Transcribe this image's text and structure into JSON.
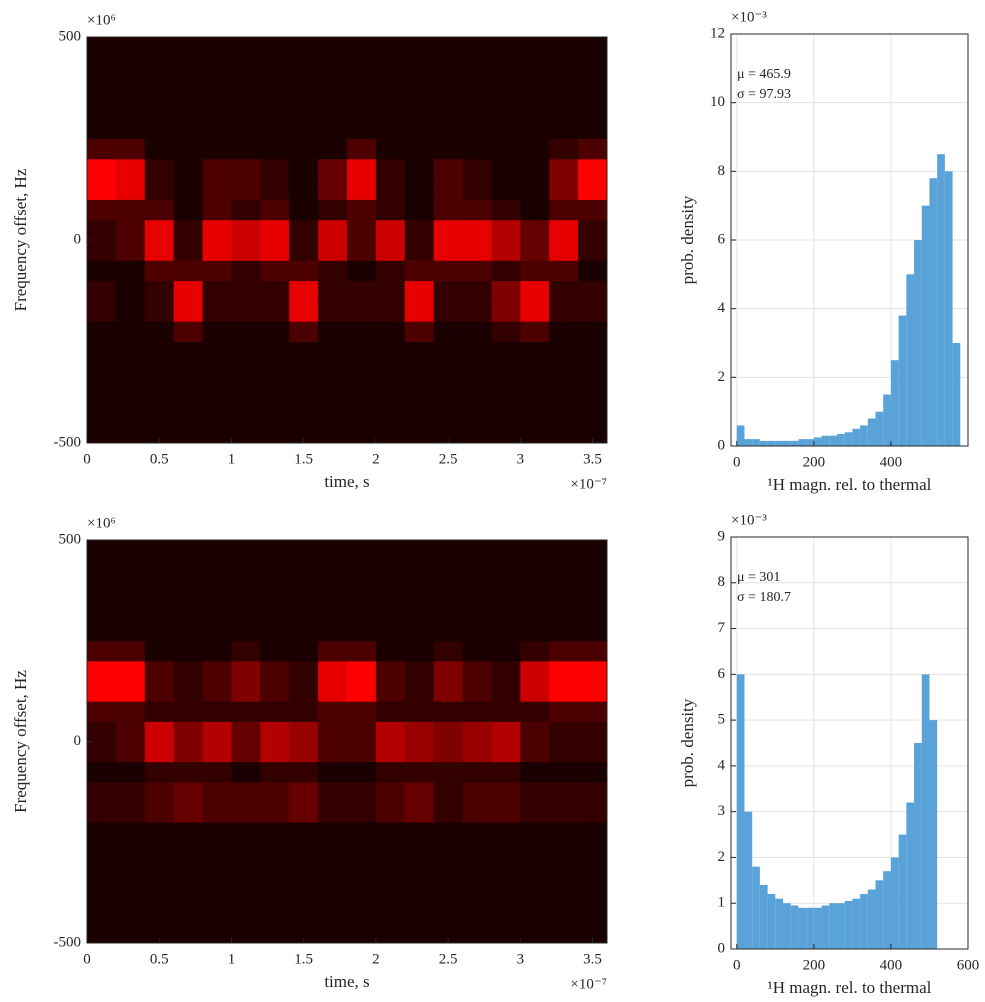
{
  "chart_data": [
    {
      "type": "heatmap",
      "xlabel": "time, s",
      "ylabel": "Frequency offset, Hz",
      "x_multiplier": "×10⁻⁷",
      "y_multiplier": "×10⁶",
      "colormap": [
        "#000000",
        "#ff0000"
      ],
      "xlim": [
        0,
        3.6
      ],
      "ylim": [
        -500,
        500
      ],
      "xticks": [
        0,
        0.5,
        1,
        1.5,
        2,
        2.5,
        3,
        3.5
      ],
      "yticks": [
        -500,
        0,
        500
      ],
      "xbins": [
        0,
        0.2,
        0.4,
        0.6,
        0.8,
        1,
        1.2,
        1.4,
        1.6,
        1.8,
        2,
        2.2,
        2.4,
        2.6,
        2.8,
        3,
        3.2,
        3.4,
        3.6
      ],
      "ybins": [
        -500,
        -450,
        -400,
        -350,
        -300,
        -250,
        -200,
        -150,
        -100,
        -50,
        0,
        50,
        100,
        150,
        200,
        250,
        300,
        350,
        400,
        450,
        500
      ],
      "z": [
        [
          1,
          1,
          1,
          1,
          1,
          1,
          1,
          1,
          1,
          1,
          1,
          1,
          1,
          1,
          1,
          1,
          1,
          1
        ],
        [
          1,
          1,
          1,
          1,
          1,
          1,
          1,
          1,
          1,
          1,
          1,
          1,
          1,
          1,
          1,
          1,
          1,
          1
        ],
        [
          1,
          1,
          1,
          1,
          1,
          1,
          1,
          1,
          1,
          1,
          1,
          1,
          1,
          1,
          1,
          1,
          1,
          1
        ],
        [
          1,
          1,
          1,
          1,
          1,
          1,
          1,
          1,
          1,
          1,
          1,
          1,
          1,
          1,
          1,
          1,
          1,
          1
        ],
        [
          1,
          1,
          1,
          1,
          1,
          1,
          1,
          1,
          1,
          1,
          1,
          1,
          1,
          1,
          1,
          1,
          1,
          1
        ],
        [
          1,
          1,
          1,
          3,
          1,
          1,
          1,
          3,
          1,
          1,
          1,
          3,
          1,
          1,
          2,
          3,
          1,
          1
        ],
        [
          2,
          1,
          2,
          9,
          2,
          2,
          2,
          9,
          2,
          2,
          2,
          9,
          2,
          2,
          5,
          9,
          2,
          2
        ],
        [
          2,
          1,
          2,
          9,
          2,
          2,
          2,
          9,
          2,
          2,
          2,
          9,
          2,
          2,
          5,
          9,
          2,
          2
        ],
        [
          1,
          1,
          3,
          3,
          3,
          2,
          3,
          3,
          2,
          1,
          2,
          3,
          3,
          3,
          2,
          3,
          3,
          1
        ],
        [
          2,
          3,
          9,
          2,
          9,
          8,
          9,
          2,
          8,
          3,
          8,
          2,
          9,
          9,
          7,
          4,
          9,
          2
        ],
        [
          2,
          3,
          9,
          2,
          9,
          8,
          9,
          2,
          8,
          3,
          8,
          2,
          9,
          9,
          7,
          4,
          9,
          2
        ],
        [
          3,
          3,
          3,
          1,
          3,
          2,
          3,
          1,
          2,
          3,
          2,
          1,
          3,
          3,
          2,
          1,
          3,
          3
        ],
        [
          10,
          9,
          2,
          1,
          3,
          3,
          2,
          1,
          4,
          9,
          2,
          1,
          3,
          2,
          1,
          1,
          5,
          10
        ],
        [
          10,
          9,
          2,
          1,
          3,
          3,
          2,
          1,
          4,
          9,
          2,
          1,
          3,
          2,
          1,
          1,
          5,
          10
        ],
        [
          3,
          3,
          1,
          1,
          1,
          1,
          1,
          1,
          1,
          3,
          1,
          1,
          1,
          1,
          1,
          1,
          2,
          3
        ],
        [
          1,
          1,
          1,
          1,
          1,
          1,
          1,
          1,
          1,
          1,
          1,
          1,
          1,
          1,
          1,
          1,
          1,
          1
        ],
        [
          1,
          1,
          1,
          1,
          1,
          1,
          1,
          1,
          1,
          1,
          1,
          1,
          1,
          1,
          1,
          1,
          1,
          1
        ],
        [
          1,
          1,
          1,
          1,
          1,
          1,
          1,
          1,
          1,
          1,
          1,
          1,
          1,
          1,
          1,
          1,
          1,
          1
        ],
        [
          1,
          1,
          1,
          1,
          1,
          1,
          1,
          1,
          1,
          1,
          1,
          1,
          1,
          1,
          1,
          1,
          1,
          1
        ],
        [
          1,
          1,
          1,
          1,
          1,
          1,
          1,
          1,
          1,
          1,
          1,
          1,
          1,
          1,
          1,
          1,
          1,
          1
        ]
      ]
    },
    {
      "type": "histogram",
      "xlabel": "¹H magn. rel. to thermal",
      "ylabel": "prob. density",
      "y_multiplier": "×10⁻³",
      "annotations": [
        "μ = 465.9",
        "σ = 97.93"
      ],
      "color": "#5aa3d8",
      "grid": true,
      "xlim": [
        -15,
        600
      ],
      "ylim": [
        0,
        12
      ],
      "xticks": [
        0,
        200,
        400
      ],
      "yticks": [
        0,
        2,
        4,
        6,
        8,
        10,
        12
      ],
      "bins": [
        0,
        20,
        40,
        60,
        80,
        100,
        120,
        140,
        160,
        180,
        200,
        220,
        240,
        260,
        280,
        300,
        320,
        340,
        360,
        380,
        400,
        420,
        440,
        460,
        480,
        500,
        520,
        540,
        560,
        580
      ],
      "values": [
        0.6,
        0.2,
        0.2,
        0.15,
        0.15,
        0.15,
        0.15,
        0.15,
        0.2,
        0.2,
        0.25,
        0.3,
        0.3,
        0.35,
        0.4,
        0.5,
        0.6,
        0.8,
        1.0,
        1.5,
        2.5,
        3.8,
        5.0,
        6.0,
        7.0,
        7.8,
        8.5,
        8.0,
        3.0
      ]
    },
    {
      "type": "heatmap",
      "xlabel": "time, s",
      "ylabel": "Frequency offset, Hz",
      "x_multiplier": "×10⁻⁷",
      "y_multiplier": "×10⁶",
      "colormap": [
        "#000000",
        "#ff0000"
      ],
      "xlim": [
        0,
        3.6
      ],
      "ylim": [
        -500,
        500
      ],
      "xticks": [
        0,
        0.5,
        1,
        1.5,
        2,
        2.5,
        3,
        3.5
      ],
      "yticks": [
        -500,
        0,
        500
      ],
      "xbins": [
        0,
        0.2,
        0.4,
        0.6,
        0.8,
        1,
        1.2,
        1.4,
        1.6,
        1.8,
        2,
        2.2,
        2.4,
        2.6,
        2.8,
        3,
        3.2,
        3.4,
        3.6
      ],
      "ybins": [
        -500,
        -450,
        -400,
        -350,
        -300,
        -250,
        -200,
        -150,
        -100,
        -50,
        0,
        50,
        100,
        150,
        200,
        250,
        300,
        350,
        400,
        450,
        500
      ],
      "z": [
        [
          1,
          1,
          1,
          1,
          1,
          1,
          1,
          1,
          1,
          1,
          1,
          1,
          1,
          1,
          1,
          1,
          1,
          1
        ],
        [
          1,
          1,
          1,
          1,
          1,
          1,
          1,
          1,
          1,
          1,
          1,
          1,
          1,
          1,
          1,
          1,
          1,
          1
        ],
        [
          1,
          1,
          1,
          1,
          1,
          1,
          1,
          1,
          1,
          1,
          1,
          1,
          1,
          1,
          1,
          1,
          1,
          1
        ],
        [
          1,
          1,
          1,
          1,
          1,
          1,
          1,
          1,
          1,
          1,
          1,
          1,
          1,
          1,
          1,
          1,
          1,
          1
        ],
        [
          1,
          1,
          1,
          1,
          1,
          1,
          1,
          1,
          1,
          1,
          1,
          1,
          1,
          1,
          1,
          1,
          1,
          1
        ],
        [
          1,
          1,
          1,
          1,
          1,
          1,
          1,
          1,
          1,
          1,
          1,
          1,
          1,
          1,
          1,
          1,
          1,
          1
        ],
        [
          2,
          2,
          3,
          4,
          3,
          3,
          3,
          4,
          2,
          2,
          3,
          4,
          2,
          3,
          3,
          2,
          2,
          2
        ],
        [
          2,
          2,
          3,
          4,
          3,
          3,
          3,
          4,
          2,
          2,
          3,
          4,
          2,
          3,
          3,
          2,
          2,
          2
        ],
        [
          1,
          1,
          2,
          2,
          2,
          1,
          2,
          2,
          1,
          1,
          2,
          2,
          2,
          2,
          2,
          1,
          1,
          1
        ],
        [
          2,
          3,
          8,
          5,
          7,
          4,
          7,
          6,
          3,
          3,
          7,
          6,
          5,
          6,
          7,
          3,
          2,
          2
        ],
        [
          2,
          3,
          8,
          5,
          7,
          4,
          7,
          6,
          3,
          3,
          7,
          6,
          5,
          6,
          7,
          3,
          2,
          2
        ],
        [
          3,
          3,
          2,
          2,
          2,
          2,
          2,
          2,
          3,
          3,
          2,
          2,
          2,
          2,
          2,
          2,
          3,
          3
        ],
        [
          10,
          10,
          3,
          2,
          3,
          5,
          3,
          2,
          9,
          10,
          3,
          2,
          5,
          3,
          2,
          8,
          10,
          10
        ],
        [
          10,
          10,
          3,
          2,
          3,
          5,
          3,
          2,
          9,
          10,
          3,
          2,
          5,
          3,
          2,
          8,
          10,
          10
        ],
        [
          3,
          3,
          1,
          1,
          1,
          2,
          1,
          1,
          3,
          3,
          1,
          1,
          2,
          1,
          1,
          2,
          3,
          3
        ],
        [
          1,
          1,
          1,
          1,
          1,
          1,
          1,
          1,
          1,
          1,
          1,
          1,
          1,
          1,
          1,
          1,
          1,
          1
        ],
        [
          1,
          1,
          1,
          1,
          1,
          1,
          1,
          1,
          1,
          1,
          1,
          1,
          1,
          1,
          1,
          1,
          1,
          1
        ],
        [
          1,
          1,
          1,
          1,
          1,
          1,
          1,
          1,
          1,
          1,
          1,
          1,
          1,
          1,
          1,
          1,
          1,
          1
        ],
        [
          1,
          1,
          1,
          1,
          1,
          1,
          1,
          1,
          1,
          1,
          1,
          1,
          1,
          1,
          1,
          1,
          1,
          1
        ],
        [
          1,
          1,
          1,
          1,
          1,
          1,
          1,
          1,
          1,
          1,
          1,
          1,
          1,
          1,
          1,
          1,
          1,
          1
        ]
      ]
    },
    {
      "type": "histogram",
      "xlabel": "¹H magn. rel. to thermal",
      "ylabel": "prob. density",
      "y_multiplier": "×10⁻³",
      "annotations": [
        "μ = 301",
        "σ = 180.7"
      ],
      "color": "#5aa3d8",
      "grid": true,
      "xlim": [
        -15,
        600
      ],
      "ylim": [
        0,
        9
      ],
      "xticks": [
        0,
        200,
        400,
        600
      ],
      "yticks": [
        0,
        1,
        2,
        3,
        4,
        5,
        6,
        7,
        8,
        9
      ],
      "bins": [
        0,
        20,
        40,
        60,
        80,
        100,
        120,
        140,
        160,
        180,
        200,
        220,
        240,
        260,
        280,
        300,
        320,
        340,
        360,
        380,
        400,
        420,
        440,
        460,
        480,
        500,
        520
      ],
      "values": [
        6.0,
        3.0,
        1.8,
        1.4,
        1.2,
        1.1,
        1.0,
        0.95,
        0.9,
        0.9,
        0.9,
        0.95,
        1.0,
        1.0,
        1.05,
        1.1,
        1.2,
        1.3,
        1.5,
        1.7,
        2.0,
        2.5,
        3.2,
        4.5,
        6.0,
        5.0
      ]
    }
  ]
}
